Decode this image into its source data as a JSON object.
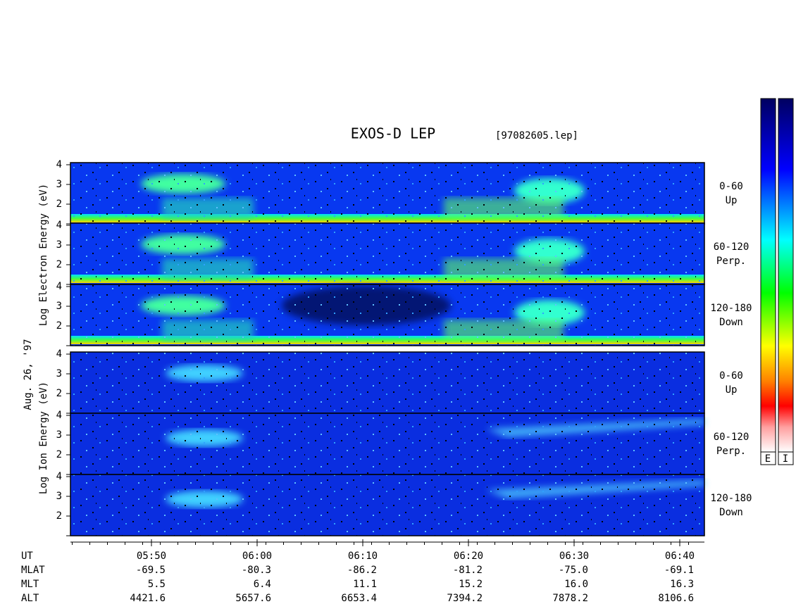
{
  "title": "EXOS-D LEP",
  "file": "[97082605.lep]",
  "date": "Aug. 26, '97",
  "electron_label": "Log Electron Energy (eV)",
  "ion_label": "Log Ion Energy (eV)",
  "panels": [
    {
      "angle": "0-60",
      "dir": "Up"
    },
    {
      "angle": "60-120",
      "dir": "Perp."
    },
    {
      "angle": "120-180",
      "dir": "Down"
    },
    {
      "angle": "0-60",
      "dir": "Up"
    },
    {
      "angle": "60-120",
      "dir": "Perp."
    },
    {
      "angle": "120-180",
      "dir": "Down"
    }
  ],
  "yticks": [
    2,
    3,
    4
  ],
  "colorbar": [
    "E",
    "I"
  ],
  "table": {
    "labels": [
      "UT",
      "MLAT",
      "MLT",
      "ALT"
    ],
    "columns": [
      [
        "05:50",
        "-69.5",
        "5.5",
        "4421.6"
      ],
      [
        "06:00",
        "-80.3",
        "6.4",
        "5657.6"
      ],
      [
        "06:10",
        "-86.2",
        "11.1",
        "6653.4"
      ],
      [
        "06:20",
        "-81.2",
        "15.2",
        "7394.2"
      ],
      [
        "06:30",
        "-75.0",
        "16.0",
        "7878.2"
      ],
      [
        "06:40",
        "-69.1",
        "16.3",
        "8106.6"
      ]
    ]
  }
}
